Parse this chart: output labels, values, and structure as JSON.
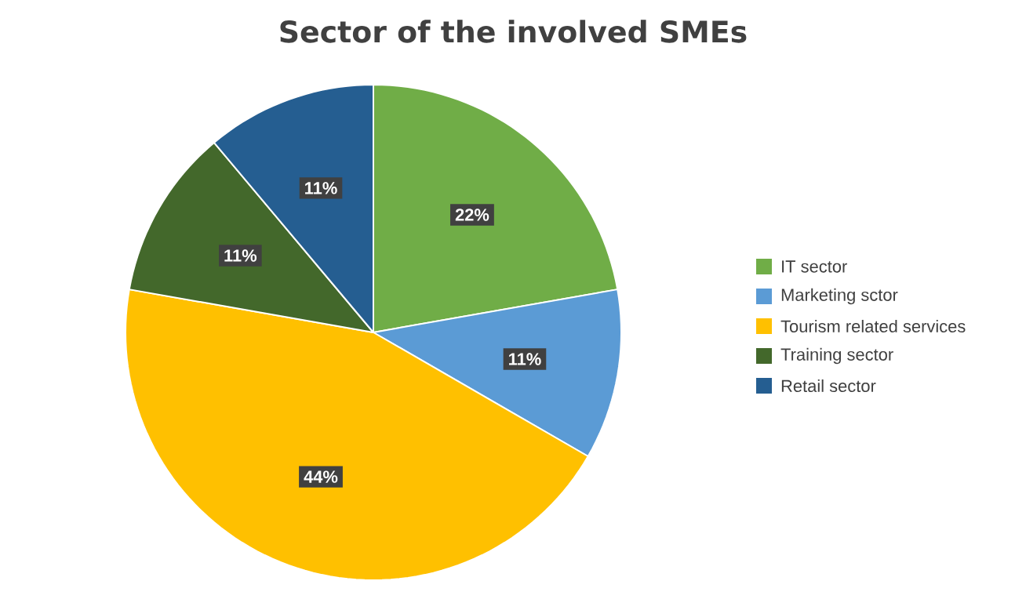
{
  "chart_data": {
    "type": "pie",
    "title": "Sector of the involved SMEs",
    "categories": [
      "IT sector",
      "Marketing sctor",
      "Tourism related services",
      "Training sector",
      "Retail sector"
    ],
    "values": [
      22,
      11,
      44,
      11,
      11
    ],
    "value_labels": [
      "22%",
      "11%",
      "44%",
      "11%",
      "11%"
    ],
    "colors": [
      "#70ad47",
      "#5b9bd5",
      "#ffc000",
      "#43682b",
      "#255e91"
    ],
    "legend": "right"
  }
}
